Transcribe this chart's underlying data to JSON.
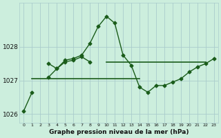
{
  "title": "Graphe pression niveau de la mer (hPa)",
  "background_color": "#cceedd",
  "grid_color": "#aacccc",
  "line_color": "#1a5c1a",
  "hours": [
    0,
    1,
    2,
    3,
    4,
    5,
    6,
    7,
    8,
    9,
    10,
    11,
    12,
    13,
    14,
    15,
    16,
    17,
    18,
    19,
    20,
    21,
    22,
    23
  ],
  "curve_main": [
    1026.1,
    1026.65,
    null,
    1027.5,
    1027.35,
    1027.6,
    1027.65,
    1027.75,
    1028.1,
    1028.6,
    1028.9,
    1028.7,
    1027.75,
    1027.45,
    1026.8,
    1026.65,
    1026.85,
    1026.85,
    1026.95,
    1027.05,
    1027.25,
    1027.4,
    1027.5,
    1027.65
  ],
  "curve_secondary": [
    null,
    null,
    null,
    1027.1,
    1027.35,
    1027.55,
    1027.6,
    1027.7,
    1027.55,
    null,
    null,
    null,
    null,
    null,
    null,
    null,
    null,
    null,
    null,
    null,
    null,
    null,
    null,
    null
  ],
  "flat_lower": [
    null,
    1027.05,
    1027.05,
    1027.05,
    1027.05,
    1027.05,
    1027.05,
    1027.05,
    1027.05,
    1027.05,
    1027.05,
    1027.05,
    1027.05,
    1027.05,
    1027.05,
    null,
    null,
    null,
    null,
    null,
    null,
    null,
    null,
    null
  ],
  "flat_upper": [
    null,
    null,
    null,
    null,
    null,
    null,
    null,
    null,
    null,
    null,
    1027.55,
    1027.55,
    1027.55,
    1027.55,
    1027.55,
    1027.55,
    1027.55,
    1027.55,
    1027.55,
    1027.55,
    1027.55,
    1027.55,
    1027.55,
    null
  ],
  "ylim": [
    1025.75,
    1029.3
  ],
  "yticks": [
    1026,
    1027,
    1028
  ],
  "xlim": [
    -0.5,
    23.5
  ],
  "xticks": [
    0,
    1,
    2,
    3,
    4,
    5,
    6,
    7,
    8,
    9,
    10,
    11,
    12,
    13,
    14,
    15,
    16,
    17,
    18,
    19,
    20,
    21,
    22,
    23
  ]
}
